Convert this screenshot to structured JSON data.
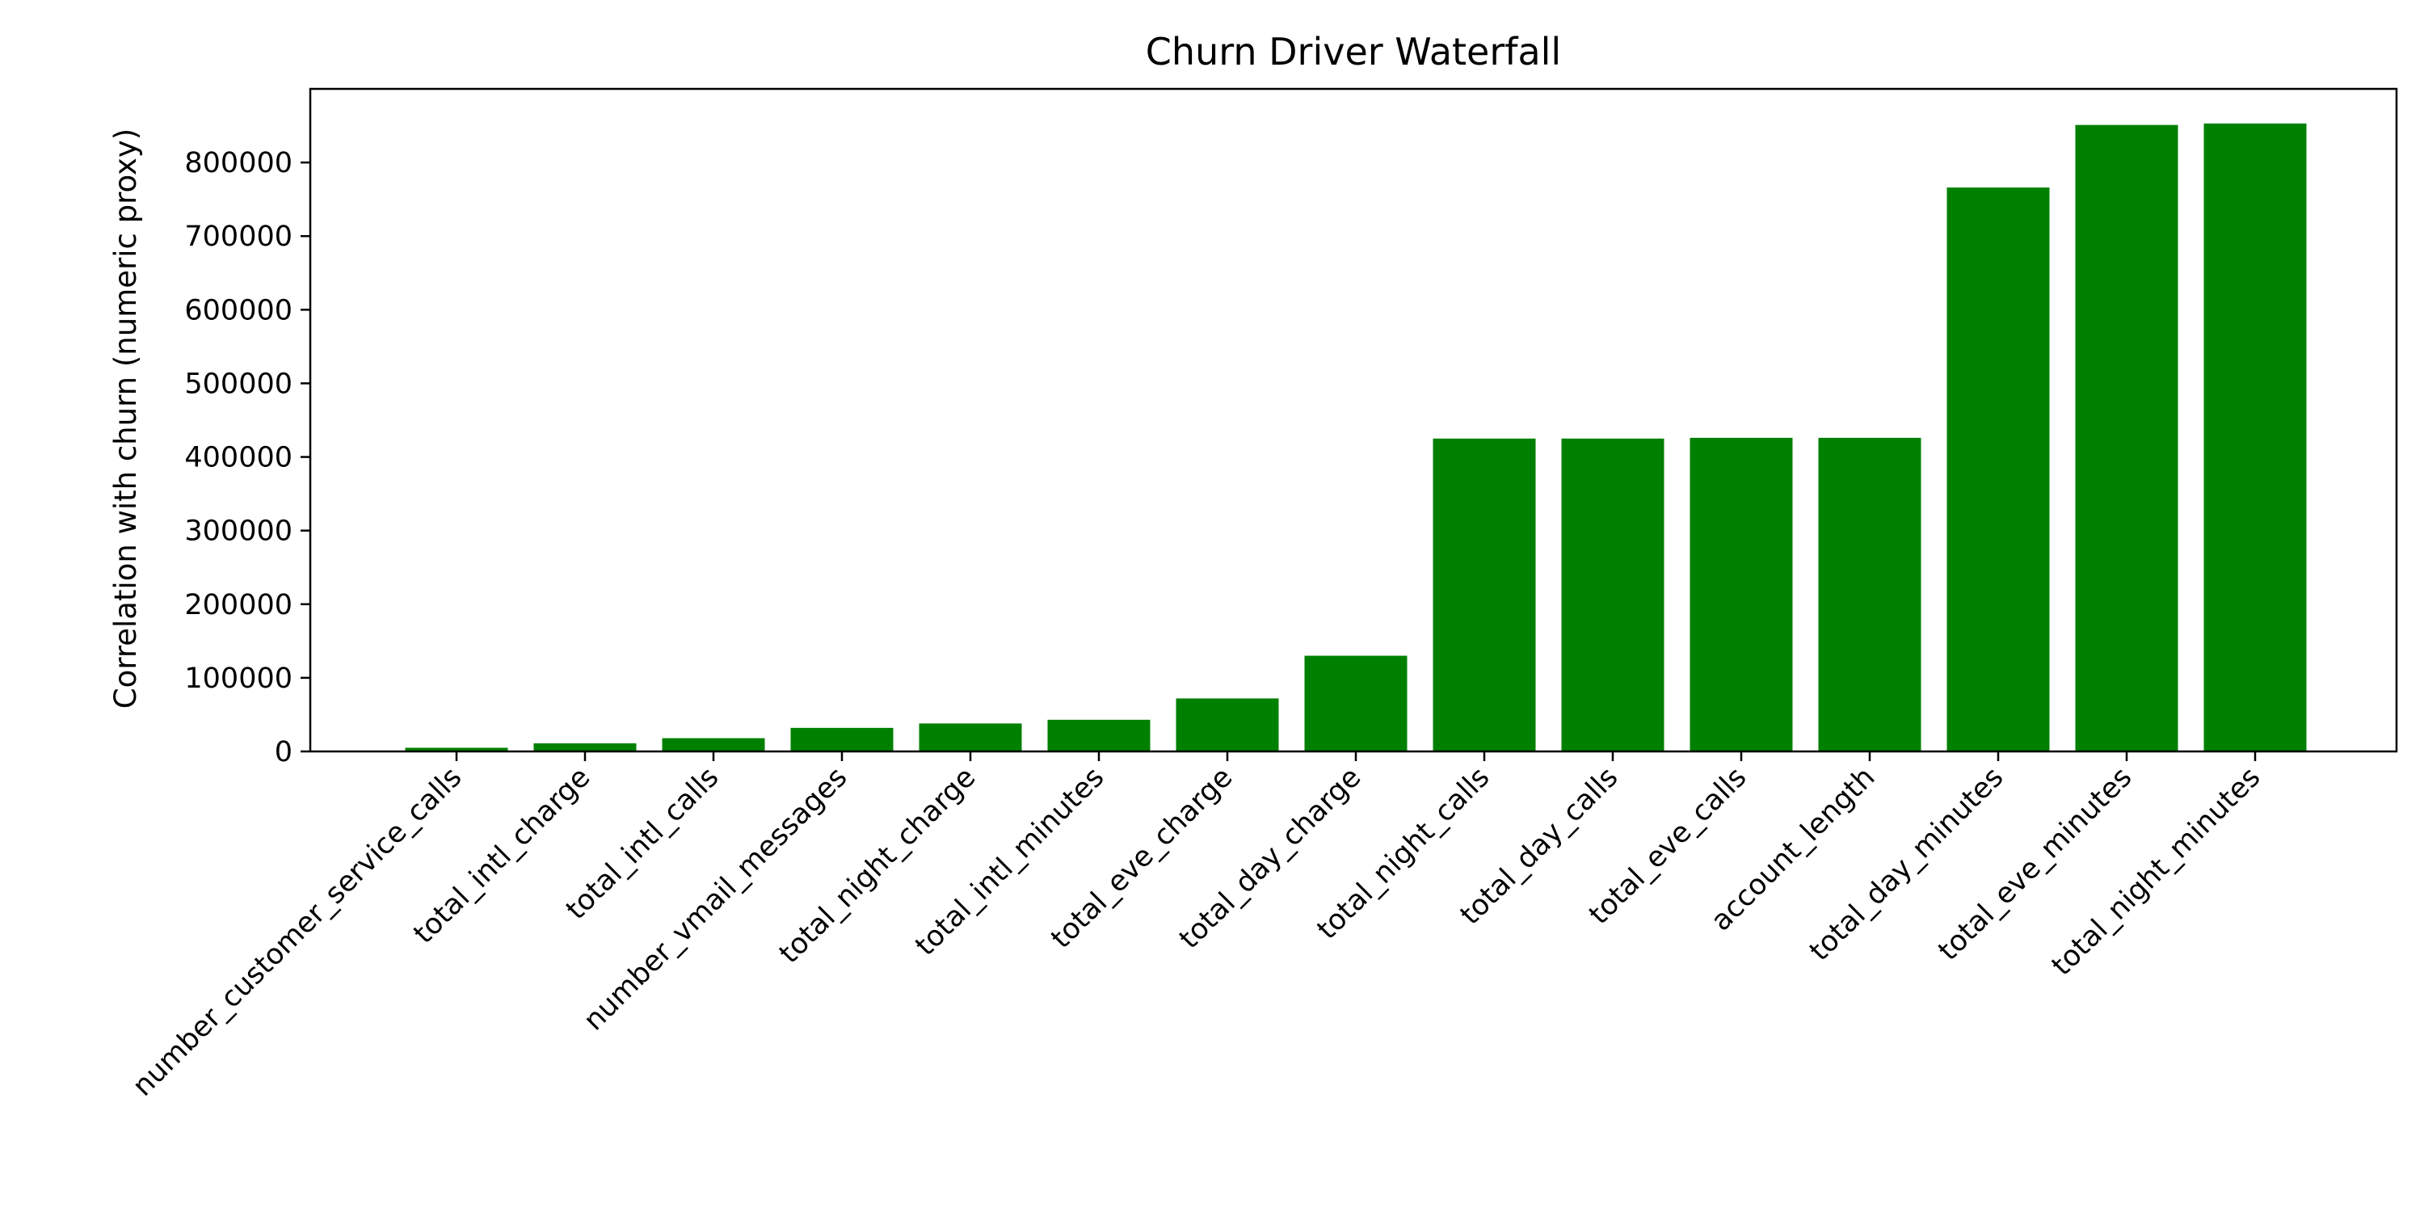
{
  "chart_data": {
    "type": "bar",
    "title": "Churn Driver Waterfall",
    "xlabel": "",
    "ylabel": "Correlation with churn (numeric proxy)",
    "ylim": [
      0,
      900000
    ],
    "yticks": [
      0,
      100000,
      200000,
      300000,
      400000,
      500000,
      600000,
      700000,
      800000
    ],
    "ytick_labels": [
      "0",
      "100000",
      "200000",
      "300000",
      "400000",
      "500000",
      "600000",
      "700000",
      "800000"
    ],
    "grid": false,
    "legend": "none",
    "bar_color": "#008000",
    "categories": [
      "number_customer_service_calls",
      "total_intl_charge",
      "total_intl_calls",
      "number_vmail_messages",
      "total_night_charge",
      "total_intl_minutes",
      "total_eve_charge",
      "total_day_charge",
      "total_night_calls",
      "total_day_calls",
      "total_eve_calls",
      "account_length",
      "total_day_minutes",
      "total_eve_minutes",
      "total_night_minutes"
    ],
    "values": [
      5000,
      11000,
      18000,
      32000,
      38000,
      43000,
      72000,
      130000,
      425000,
      425000,
      426000,
      426000,
      766000,
      851000,
      853000
    ]
  }
}
